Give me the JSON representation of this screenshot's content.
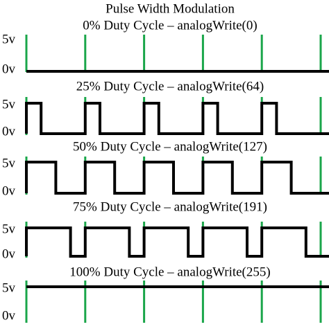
{
  "title": "Pulse Width Modulation",
  "panels": [
    {
      "label": "0% Duty Cycle – analogWrite(0)",
      "high": "5v",
      "low": "0v"
    },
    {
      "label": "25% Duty Cycle – analogWrite(64)",
      "high": "5v",
      "low": "0v"
    },
    {
      "label": "50% Duty Cycle – analogWrite(127)",
      "high": "5v",
      "low": "0v"
    },
    {
      "label": "75% Duty Cycle – analogWrite(191)",
      "high": "5v",
      "low": "0v"
    },
    {
      "label": "100% Duty Cycle – analogWrite(255)",
      "high": "5v",
      "low": "0v"
    }
  ]
}
